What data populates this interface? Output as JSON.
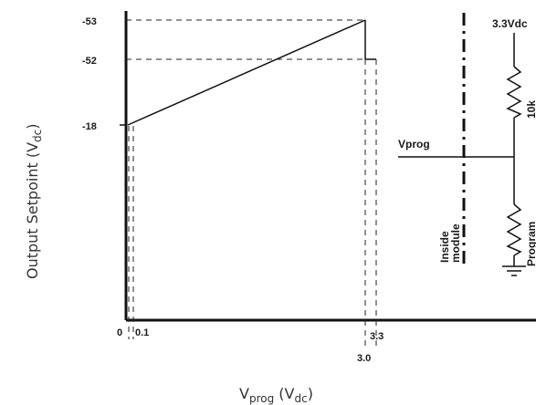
{
  "chart_data": {
    "type": "line",
    "xlabel": "V",
    "xlabel_sub": "prog",
    "xlabel_unit_open": " (V",
    "xlabel_unit_sub": "dc",
    "xlabel_unit_close": ")",
    "ylabel": "Output Setpoint (V",
    "ylabel_sub": "dc",
    "ylabel_close": ")",
    "x_ticks": [
      "0",
      "0.1",
      "3.0",
      "3.3"
    ],
    "y_ticks": [
      "-53",
      "-52",
      "-18"
    ],
    "series": [
      {
        "points": [
          {
            "x": 0.1,
            "y": -18
          },
          {
            "x": 3.0,
            "y": -53
          },
          {
            "x": 3.0,
            "y": -52
          },
          {
            "x": 3.3,
            "y": -52
          }
        ]
      }
    ]
  },
  "circuit": {
    "supply_label": "3.3Vdc",
    "input_label": "Vprog",
    "pullup_label": "10k",
    "program_resistor_label": "Program",
    "boundary_label_line1": "Inside",
    "boundary_label_line2": "module"
  }
}
